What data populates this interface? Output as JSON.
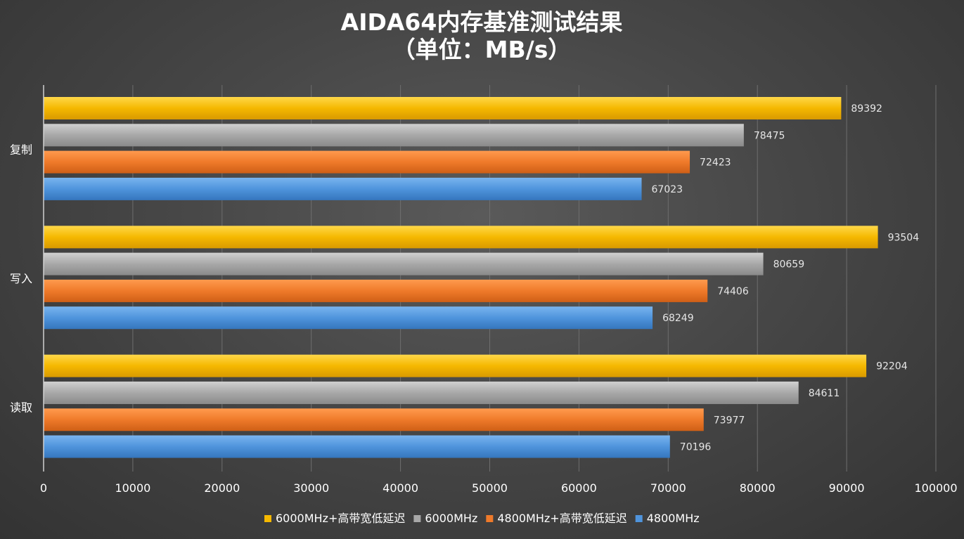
{
  "chart_data": {
    "type": "bar",
    "orientation": "horizontal",
    "title": [
      "AIDA64内存基准测试结果",
      "（单位：MB/s）"
    ],
    "categories": [
      "复制",
      "写入",
      "读取"
    ],
    "series": [
      {
        "name": "6000MHz+高带宽低延迟",
        "color": "#f5b800",
        "values": [
          89392,
          93504,
          92204
        ]
      },
      {
        "name": "6000MHz",
        "color": "#a8a8a8",
        "values": [
          78475,
          80659,
          84611
        ]
      },
      {
        "name": "4800MHz+高带宽低延迟",
        "color": "#ef7a2a",
        "values": [
          72423,
          74406,
          73977
        ]
      },
      {
        "name": "4800MHz",
        "color": "#4f94dc",
        "values": [
          67023,
          68249,
          70196
        ]
      }
    ],
    "xlim": [
      0,
      100000
    ],
    "xticks": [
      0,
      10000,
      20000,
      30000,
      40000,
      50000,
      60000,
      70000,
      80000,
      90000,
      100000
    ],
    "grid": true,
    "legend_position": "bottom",
    "data_labels": true
  }
}
